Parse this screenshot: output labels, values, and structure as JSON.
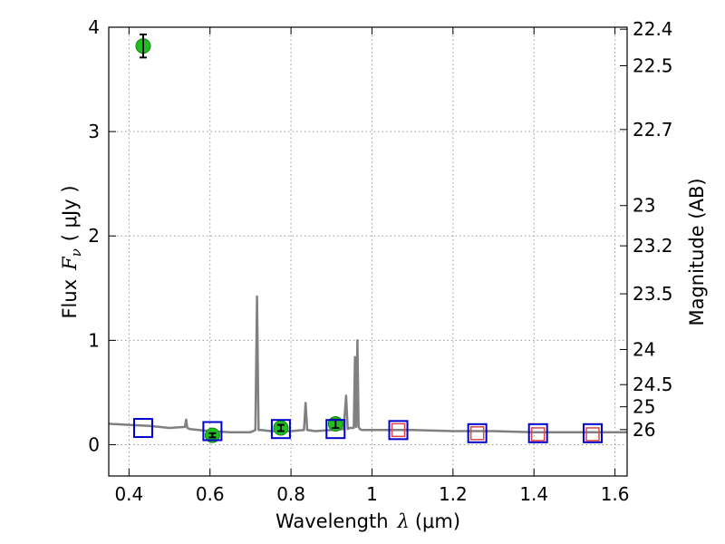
{
  "chart_data": {
    "type": "scatter",
    "title": "",
    "xlabel_prefix": "Wavelength",
    "xlabel_symbol": "λ",
    "xlabel_unit": "(μm)",
    "ylabel_prefix": "Flux",
    "ylabel_symbol": "F",
    "ylabel_subscript": "ν",
    "ylabel_unit": "( μJy )",
    "y2label": "Magnitude (AB)",
    "xlim": [
      0.35,
      1.63
    ],
    "ylim": [
      -0.3,
      4.0
    ],
    "grid": true,
    "x_ticks": [
      0.4,
      0.6,
      0.8,
      1.0,
      1.2,
      1.4,
      1.6
    ],
    "x_tick_labels": [
      "0.4",
      "0.6",
      "0.8",
      "1",
      "1.2",
      "1.4",
      "1.6"
    ],
    "y_ticks": [
      0,
      1,
      2,
      3,
      4
    ],
    "y_tick_labels": [
      "0",
      "1",
      "2",
      "3",
      "4"
    ],
    "y2_ticks": [
      22.4,
      22.5,
      22.7,
      23.0,
      23.2,
      23.5,
      24.0,
      24.5,
      25.0,
      26.0
    ],
    "y2_tick_labels": [
      "22.4",
      "22.5",
      "22.7",
      "23",
      "23.2",
      "23.5",
      "24",
      "24.5",
      "25",
      "26"
    ],
    "colors": {
      "spectrum": "#808080",
      "observed": "#22bb22",
      "model_box": "#0000cc",
      "upper_limit_box": "#dd4444",
      "grid": "#999999"
    },
    "series": [
      {
        "kind": "line",
        "role": "spectrum",
        "x": [
          0.35,
          0.4,
          0.45,
          0.5,
          0.538,
          0.541,
          0.544,
          0.55,
          0.6,
          0.65,
          0.7,
          0.712,
          0.716,
          0.72,
          0.725,
          0.75,
          0.8,
          0.832,
          0.836,
          0.84,
          0.86,
          0.9,
          0.93,
          0.936,
          0.94,
          0.945,
          0.95,
          0.955,
          0.958,
          0.961,
          0.964,
          0.967,
          0.97,
          0.975,
          1.0,
          1.1,
          1.2,
          1.3,
          1.4,
          1.5,
          1.63
        ],
        "y": [
          0.2,
          0.19,
          0.18,
          0.16,
          0.17,
          0.24,
          0.16,
          0.15,
          0.13,
          0.12,
          0.12,
          0.14,
          1.42,
          0.14,
          0.14,
          0.13,
          0.13,
          0.14,
          0.4,
          0.14,
          0.13,
          0.14,
          0.15,
          0.47,
          0.15,
          0.16,
          0.16,
          0.16,
          0.84,
          0.17,
          1.0,
          0.17,
          0.15,
          0.14,
          0.14,
          0.14,
          0.13,
          0.13,
          0.12,
          0.12,
          0.12
        ]
      },
      {
        "kind": "points",
        "role": "observed",
        "x": [
          0.435,
          0.606,
          0.775,
          0.91
        ],
        "y": [
          3.82,
          0.09,
          0.16,
          0.2
        ],
        "err": [
          0.11,
          0.02,
          0.03,
          0.04
        ]
      },
      {
        "kind": "boxes",
        "role": "model_box",
        "x": [
          0.435,
          0.606,
          0.775,
          0.91,
          1.065,
          1.26,
          1.41,
          1.545
        ],
        "y": [
          0.16,
          0.13,
          0.15,
          0.15,
          0.14,
          0.11,
          0.11,
          0.11
        ]
      },
      {
        "kind": "boxes",
        "role": "upper_limit_box",
        "x": [
          1.065,
          1.26,
          1.41,
          1.545
        ],
        "y": [
          0.14,
          0.11,
          0.1,
          0.1
        ]
      }
    ]
  }
}
